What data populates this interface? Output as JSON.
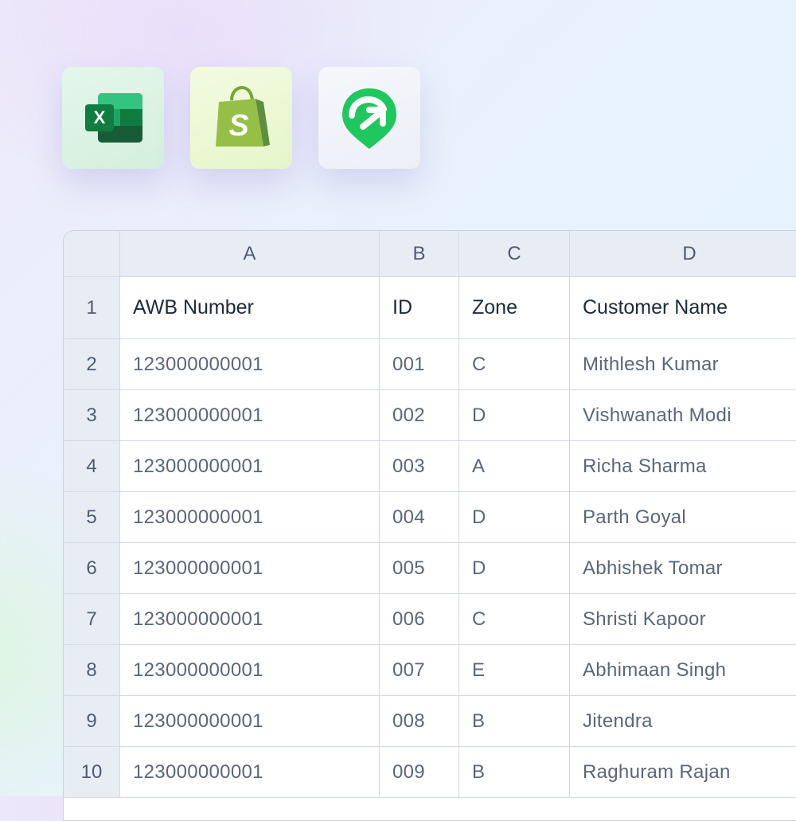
{
  "app_icons": [
    {
      "name": "excel-icon",
      "letter": "X",
      "color": "#107c41"
    },
    {
      "name": "shopify-icon",
      "letter": "S",
      "color": "#95bf47"
    },
    {
      "name": "shiprocket-icon",
      "color": "#1fc85f"
    }
  ],
  "sheet": {
    "column_letters": [
      "A",
      "B",
      "C",
      "D"
    ],
    "header_row": {
      "number": "1",
      "cells": [
        "AWB Number",
        "ID",
        "Zone",
        "Customer Name"
      ]
    },
    "rows": [
      {
        "number": "2",
        "cells": [
          "123000000001",
          "001",
          "C",
          "Mithlesh Kumar"
        ]
      },
      {
        "number": "3",
        "cells": [
          "123000000001",
          "002",
          "D",
          "Vishwanath Modi"
        ]
      },
      {
        "number": "4",
        "cells": [
          "123000000001",
          "003",
          "A",
          "Richa Sharma"
        ]
      },
      {
        "number": "5",
        "cells": [
          "123000000001",
          "004",
          "D",
          "Parth Goyal"
        ]
      },
      {
        "number": "6",
        "cells": [
          "123000000001",
          "005",
          "D",
          "Abhishek Tomar"
        ]
      },
      {
        "number": "7",
        "cells": [
          "123000000001",
          "006",
          "C",
          "Shristi Kapoor"
        ]
      },
      {
        "number": "8",
        "cells": [
          "123000000001",
          "007",
          "E",
          "Abhimaan Singh"
        ]
      },
      {
        "number": "9",
        "cells": [
          "123000000001",
          "008",
          "B",
          "Jitendra"
        ]
      },
      {
        "number": "10",
        "cells": [
          "123000000001",
          "009",
          "B",
          "Raghuram Rajan"
        ]
      }
    ]
  }
}
